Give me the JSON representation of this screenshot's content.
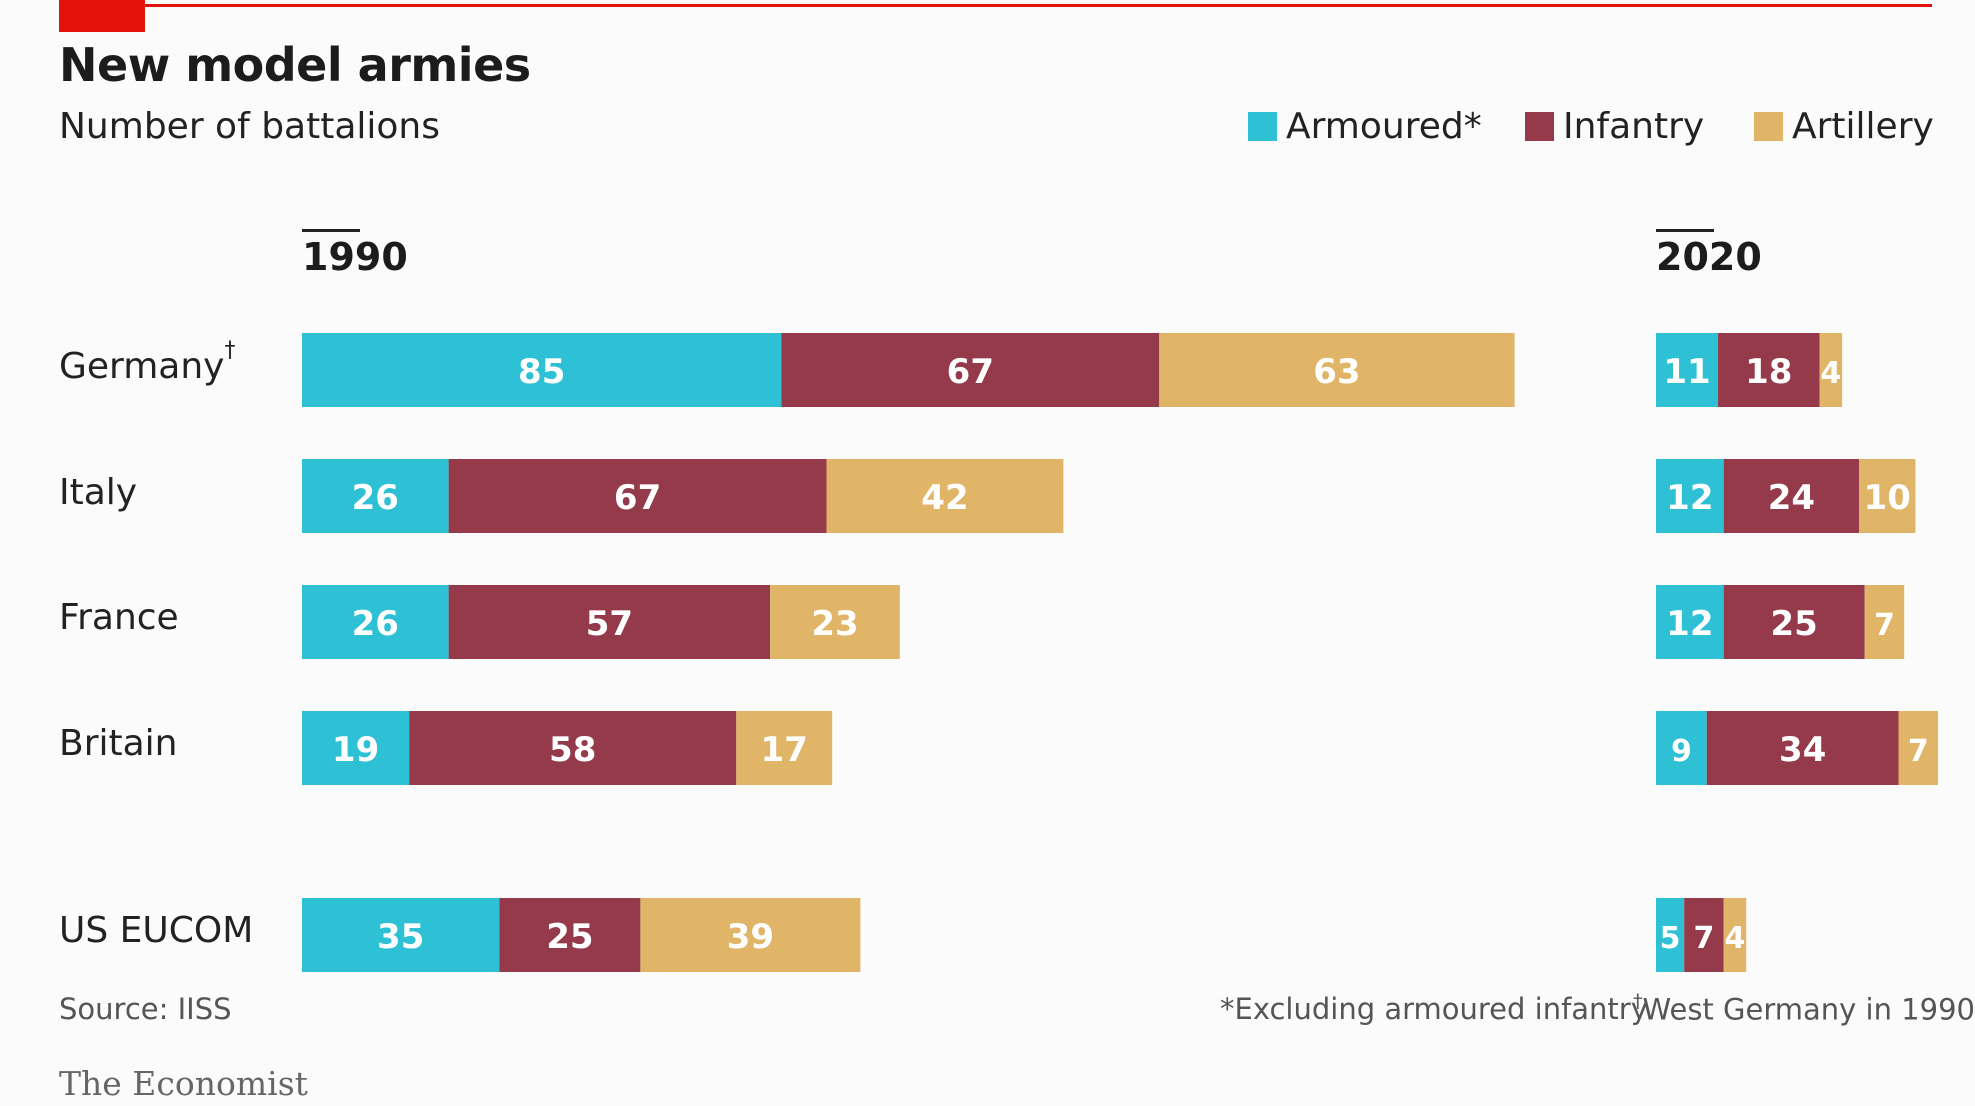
{
  "header": {
    "title": "New model armies",
    "subtitle": "Number of battalions"
  },
  "colors": {
    "accent_red": "#e3120b",
    "armoured": "#2ec0d4",
    "infantry": "#943a4a",
    "artillery": "#e0b567",
    "bar_text": "#ffffff"
  },
  "legend": [
    {
      "label": "Armoured*",
      "color": "#2ec0d4"
    },
    {
      "label": "Infantry",
      "color": "#943a4a"
    },
    {
      "label": "Artillery",
      "color": "#e0b567"
    }
  ],
  "chart_data": {
    "type": "bar",
    "orientation": "horizontal",
    "stacked": true,
    "title": "New model armies",
    "subtitle": "Number of battalions",
    "panels": [
      "1990",
      "2020"
    ],
    "categories": [
      "Germany",
      "Italy",
      "France",
      "Britain",
      "US EUCOM"
    ],
    "category_markers": [
      "†",
      "",
      "",
      "",
      ""
    ],
    "series": [
      {
        "name": "Armoured*",
        "values_1990": [
          85,
          26,
          26,
          19,
          35
        ],
        "values_2020": [
          11,
          12,
          12,
          9,
          5
        ]
      },
      {
        "name": "Infantry",
        "values_1990": [
          67,
          67,
          57,
          58,
          25
        ],
        "values_2020": [
          18,
          24,
          25,
          34,
          7
        ]
      },
      {
        "name": "Artillery",
        "values_1990": [
          63,
          42,
          23,
          17,
          39
        ],
        "values_2020": [
          4,
          10,
          7,
          7,
          4
        ]
      }
    ],
    "legend_position": "top-right",
    "grid": false
  },
  "footer": {
    "source": "Source: IISS",
    "note_armoured": "*Excluding armoured infantry",
    "note_marker": "†",
    "note_germany": "West Germany in 1990",
    "brand": "The Economist"
  }
}
